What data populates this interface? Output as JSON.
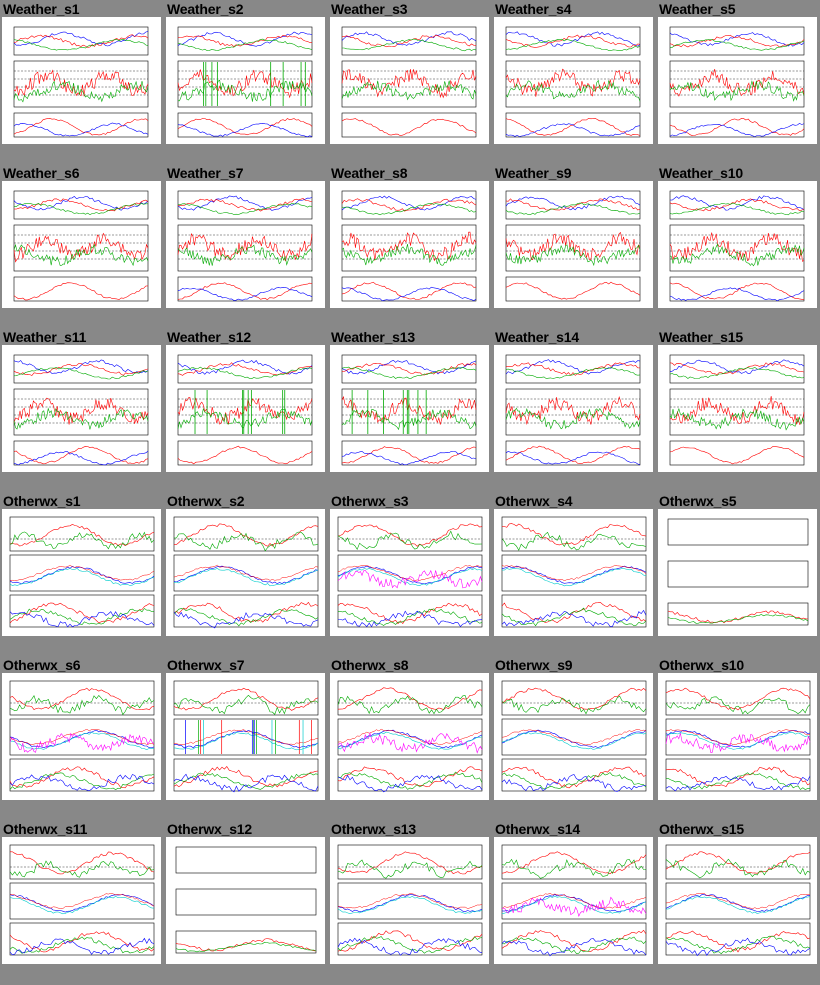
{
  "cells": [
    {
      "title": "Weather_s1",
      "style": "weather",
      "variant": 1
    },
    {
      "title": "Weather_s2",
      "style": "weather",
      "variant": 2
    },
    {
      "title": "Weather_s3",
      "style": "weather",
      "variant": 3
    },
    {
      "title": "Weather_s4",
      "style": "weather",
      "variant": 4
    },
    {
      "title": "Weather_s5",
      "style": "weather",
      "variant": 5
    },
    {
      "title": "Weather_s6",
      "style": "weather",
      "variant": 6
    },
    {
      "title": "Weather_s7",
      "style": "weather",
      "variant": 7
    },
    {
      "title": "Weather_s8",
      "style": "weather",
      "variant": 8
    },
    {
      "title": "Weather_s9",
      "style": "weather",
      "variant": 9
    },
    {
      "title": "Weather_s10",
      "style": "weather",
      "variant": 10
    },
    {
      "title": "Weather_s11",
      "style": "weather",
      "variant": 11
    },
    {
      "title": "Weather_s12",
      "style": "weather",
      "variant": 12
    },
    {
      "title": "Weather_s13",
      "style": "weather",
      "variant": 13
    },
    {
      "title": "Weather_s14",
      "style": "weather",
      "variant": 14
    },
    {
      "title": "Weather_s15",
      "style": "weather",
      "variant": 15
    },
    {
      "title": "Otherwx_s1",
      "style": "otherwx",
      "variant": 1
    },
    {
      "title": "Otherwx_s2",
      "style": "otherwx",
      "variant": 2
    },
    {
      "title": "Otherwx_s3",
      "style": "otherwx",
      "variant": 3
    },
    {
      "title": "Otherwx_s4",
      "style": "otherwx",
      "variant": 4
    },
    {
      "title": "Otherwx_s5",
      "style": "otherwx-empty",
      "variant": 5
    },
    {
      "title": "Otherwx_s6",
      "style": "otherwx",
      "variant": 6
    },
    {
      "title": "Otherwx_s7",
      "style": "otherwx",
      "variant": 7
    },
    {
      "title": "Otherwx_s8",
      "style": "otherwx",
      "variant": 8
    },
    {
      "title": "Otherwx_s9",
      "style": "otherwx",
      "variant": 9
    },
    {
      "title": "Otherwx_s10",
      "style": "otherwx",
      "variant": 10
    },
    {
      "title": "Otherwx_s11",
      "style": "otherwx",
      "variant": 11
    },
    {
      "title": "Otherwx_s12",
      "style": "otherwx-empty",
      "variant": 12
    },
    {
      "title": "Otherwx_s13",
      "style": "otherwx",
      "variant": 13
    },
    {
      "title": "Otherwx_s14",
      "style": "otherwx",
      "variant": 14
    },
    {
      "title": "Otherwx_s15",
      "style": "otherwx",
      "variant": 15
    }
  ],
  "colors": {
    "page_bg": "#888888",
    "panel_bg": "#ffffff",
    "series": [
      "#ff0000",
      "#00aa00",
      "#0000ff",
      "#00cccc",
      "#ff00ff",
      "#884400"
    ]
  }
}
